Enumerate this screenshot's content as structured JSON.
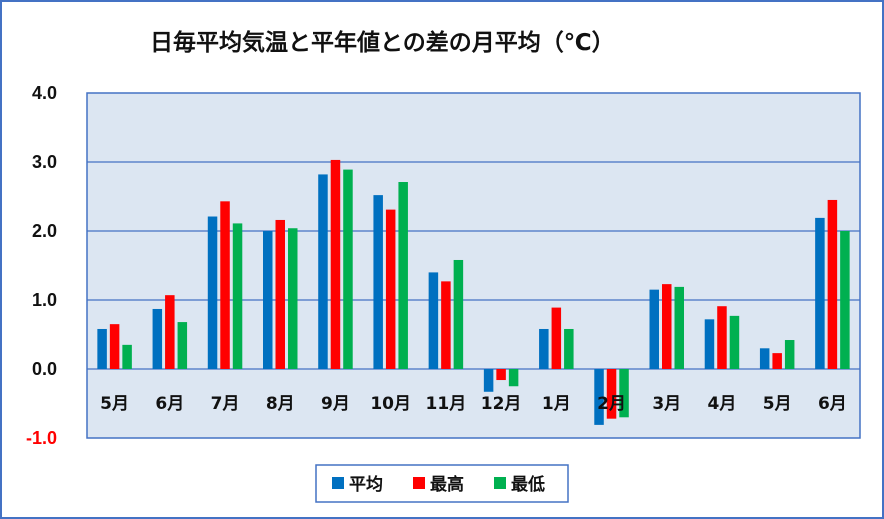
{
  "chart_data": {
    "type": "bar",
    "title": "日毎平均気温と平年値との差の月平均（℃）",
    "categories": [
      "5月",
      "6月",
      "7月",
      "8月",
      "9月",
      "10月",
      "11月",
      "12月",
      "1月",
      "2月",
      "3月",
      "4月",
      "5月",
      "6月"
    ],
    "series": [
      {
        "name": "平均",
        "color": "#0070c0",
        "values": [
          0.58,
          0.87,
          2.21,
          2.0,
          2.82,
          2.52,
          1.4,
          -0.33,
          0.58,
          -0.81,
          1.15,
          0.72,
          0.3,
          2.19
        ]
      },
      {
        "name": "最高",
        "color": "#ff0000",
        "values": [
          0.65,
          1.07,
          2.43,
          2.16,
          3.03,
          2.31,
          1.27,
          -0.16,
          0.89,
          -0.72,
          1.23,
          0.91,
          0.23,
          2.45
        ]
      },
      {
        "name": "最低",
        "color": "#00b050",
        "values": [
          0.35,
          0.68,
          2.11,
          2.04,
          2.89,
          2.71,
          1.58,
          -0.25,
          0.58,
          -0.7,
          1.19,
          0.77,
          0.42,
          2.0
        ]
      }
    ],
    "ylim": [
      -1.0,
      4.0
    ],
    "yticks": [
      "4.0",
      "3.0",
      "2.0",
      "1.0",
      "0.0",
      "-1.0"
    ],
    "ytick_colors": [
      "#111111",
      "#111111",
      "#111111",
      "#111111",
      "#111111",
      "#ff0000"
    ],
    "grid": true,
    "legend_position": "bottom-center",
    "plot_background": "#dce6f2",
    "border_color": "#4472c4"
  }
}
